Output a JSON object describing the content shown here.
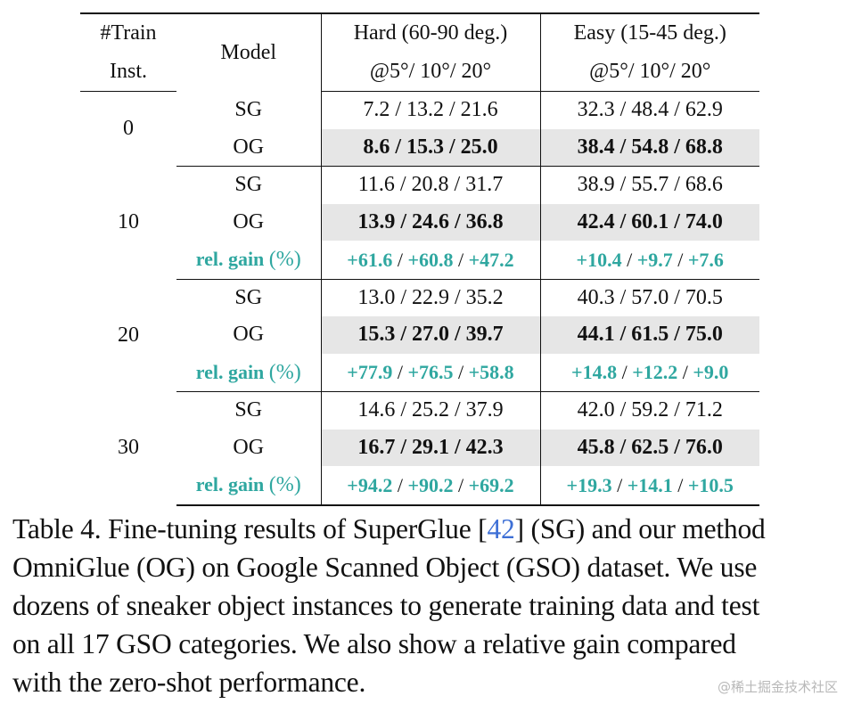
{
  "table": {
    "headers": {
      "train_line1": "#Train",
      "train_line2": "Inst.",
      "model": "Model",
      "hard_line1": "Hard (60-90 deg.)",
      "hard_line2": "@5°/ 10°/ 20°",
      "easy_line1": "Easy (15-45 deg.)",
      "easy_line2": "@5°/ 10°/ 20°"
    },
    "gain_label": "rel. gain ",
    "gain_label_paren": "(%)",
    "separator": " / ",
    "groups": [
      {
        "train": "0",
        "rows": [
          {
            "model": "SG",
            "hard": "7.2 / 13.2 / 21.6",
            "easy": "32.3 / 48.4 / 62.9"
          },
          {
            "model": "OG",
            "hard": "8.6 / 15.3 / 25.0",
            "easy": "38.4 / 54.8 / 68.8"
          }
        ]
      },
      {
        "train": "10",
        "rows": [
          {
            "model": "SG",
            "hard": "11.6 / 20.8 / 31.7",
            "easy": "38.9 / 55.7 / 68.6"
          },
          {
            "model": "OG",
            "hard": "13.9 / 24.6 / 36.8",
            "easy": "42.4 / 60.1 / 74.0"
          }
        ],
        "gain": {
          "hard": [
            "+61.6",
            "+60.8",
            "+47.2"
          ],
          "easy": [
            "+10.4",
            "+9.7",
            "+7.6"
          ]
        }
      },
      {
        "train": "20",
        "rows": [
          {
            "model": "SG",
            "hard": "13.0 / 22.9 / 35.2",
            "easy": "40.3 / 57.0 / 70.5"
          },
          {
            "model": "OG",
            "hard": "15.3 / 27.0 / 39.7",
            "easy": "44.1 / 61.5 / 75.0"
          }
        ],
        "gain": {
          "hard": [
            "+77.9",
            "+76.5",
            "+58.8"
          ],
          "easy": [
            "+14.8",
            "+12.2",
            "+9.0"
          ]
        }
      },
      {
        "train": "30",
        "rows": [
          {
            "model": "SG",
            "hard": "14.6 / 25.2 / 37.9",
            "easy": "42.0 / 59.2 / 71.2"
          },
          {
            "model": "OG",
            "hard": "16.7 / 29.1 / 42.3",
            "easy": "45.8 / 62.5 / 76.0"
          }
        ],
        "gain": {
          "hard": [
            "+94.2",
            "+90.2",
            "+69.2"
          ],
          "easy": [
            "+19.3",
            "+14.1",
            "+10.5"
          ]
        }
      }
    ]
  },
  "caption": {
    "line1_a": "Table 4. Fine-tuning results of SuperGlue [",
    "line1_ref": "42",
    "line1_b": "] (SG) and our method",
    "line2": "OmniGlue (OG) on Google Scanned Object (GSO) dataset. We use",
    "line3": "dozens of sneaker object instances to generate training data and test",
    "line4": "on all 17 GSO categories. We also show a relative gain compared",
    "line5": "with the zero-shot performance."
  },
  "watermark": "@稀土掘金技术社区",
  "colors": {
    "gain": "#2fa7a0",
    "ref_link": "#3d6fd6",
    "og_shade": "#e6e6e6"
  }
}
